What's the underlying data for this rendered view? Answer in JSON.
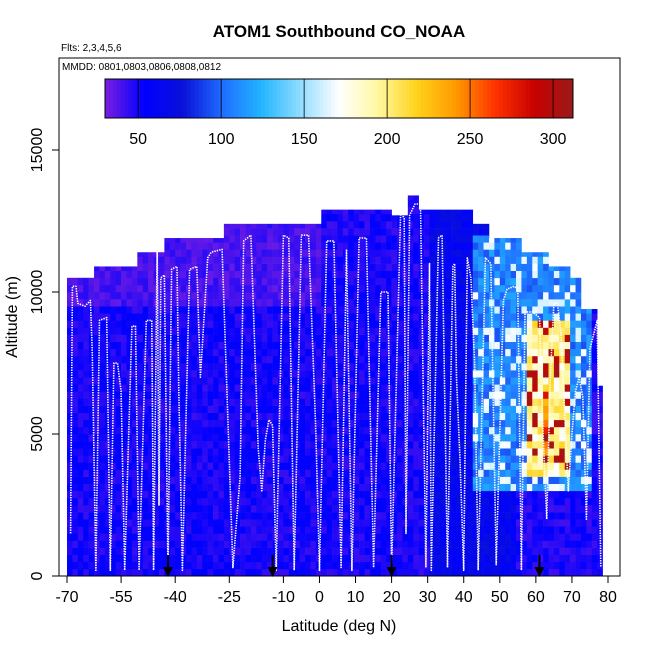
{
  "chart_data": {
    "type": "heatmap",
    "title": "ATOM1 Southbound CO_NOAA",
    "flights_label": "Flts: 2,3,4,5,6",
    "dates_label": "MMDD: 0801,0803,0806,0808,0812",
    "xlabel": "Latitude (deg N)",
    "ylabel": "Altitude (m)",
    "xlim": [
      -70,
      80
    ],
    "ylim": [
      0,
      17500
    ],
    "x_ticks": [
      "-70",
      "-55",
      "-40",
      "-25",
      "-10",
      "0",
      "10",
      "20",
      "30",
      "40",
      "50",
      "60",
      "70",
      "80"
    ],
    "x_tick_values": [
      -70,
      -55,
      -40,
      -25,
      -10,
      0,
      10,
      20,
      30,
      40,
      50,
      60,
      70,
      80
    ],
    "y_ticks": [
      "0",
      "5000",
      "10000",
      "15000"
    ],
    "y_tick_values": [
      0,
      5000,
      10000,
      15000
    ],
    "colorbar": {
      "min": 30,
      "max": 312,
      "ticks": [
        "50",
        "100",
        "150",
        "200",
        "250",
        "300"
      ],
      "tick_values": [
        50,
        100,
        150,
        200,
        250,
        300
      ],
      "colors": [
        "#7b1fe0",
        "#0000ff",
        "#0a10d8",
        "#1f6cff",
        "#22b4ff",
        "#8fdcff",
        "#ffffff",
        "#fff8a0",
        "#ffd21a",
        "#ff9900",
        "#ff3300",
        "#c80000",
        "#9a1a1a"
      ]
    },
    "column_tops": [
      {
        "lat_from": -70,
        "lat_to": -63,
        "top": 10500
      },
      {
        "lat_from": -63,
        "lat_to": -50,
        "top": 10900
      },
      {
        "lat_from": -50,
        "lat_to": -43,
        "top": 11400
      },
      {
        "lat_from": -43,
        "lat_to": -27,
        "top": 11900
      },
      {
        "lat_from": -27,
        "lat_to": 0,
        "top": 12400
      },
      {
        "lat_from": 0,
        "lat_to": 20,
        "top": 12900
      },
      {
        "lat_from": 20,
        "lat_to": 24,
        "top": 12700
      },
      {
        "lat_from": 24,
        "lat_to": 28,
        "top": 13400
      },
      {
        "lat_from": 28,
        "lat_to": 42,
        "top": 12900
      },
      {
        "lat_from": 42,
        "lat_to": 47,
        "top": 12400
      },
      {
        "lat_from": 47,
        "lat_to": 56,
        "top": 11900
      },
      {
        "lat_from": 56,
        "lat_to": 64,
        "top": 11400
      },
      {
        "lat_from": 64,
        "lat_to": 69,
        "top": 10900
      },
      {
        "lat_from": 69,
        "lat_to": 73,
        "top": 10500
      },
      {
        "lat_from": 73,
        "lat_to": 77,
        "top": 9400
      },
      {
        "lat_from": 77,
        "lat_to": 78.5,
        "top": 6700
      }
    ],
    "co_ranges_ppb": [
      {
        "lat_from": -70,
        "lat_to": 30,
        "alt_from": 0,
        "alt_to": 10500,
        "co": 50
      },
      {
        "lat_from": -70,
        "lat_to": 0,
        "alt_from": 9500,
        "alt_to": 12400,
        "co": 40
      },
      {
        "lat_from": 30,
        "lat_to": 55,
        "alt_from": 0,
        "alt_to": 13000,
        "co": 65
      },
      {
        "lat_from": 42,
        "lat_to": 76,
        "alt_from": 3000,
        "alt_to": 12000,
        "co": 110
      },
      {
        "lat_from": 58,
        "lat_to": 70,
        "alt_from": 3500,
        "alt_to": 9000,
        "co": 200
      },
      {
        "lat_from": 62,
        "lat_to": 64,
        "alt_from": 4000,
        "alt_to": 6500,
        "co": 260
      }
    ],
    "flight_track": [
      [
        -69,
        1500
      ],
      [
        -68.5,
        10200
      ],
      [
        -67.5,
        10200
      ],
      [
        -67,
        9600
      ],
      [
        -65,
        9500
      ],
      [
        -63.5,
        9700
      ],
      [
        -63,
        8000
      ],
      [
        -62,
        200
      ],
      [
        -61,
        9000
      ],
      [
        -59,
        9100
      ],
      [
        -58,
        200
      ],
      [
        -57,
        7500
      ],
      [
        -56,
        7500
      ],
      [
        -55,
        6500
      ],
      [
        -54,
        200
      ],
      [
        -52,
        8800
      ],
      [
        -51,
        8800
      ],
      [
        -50,
        200
      ],
      [
        -48,
        9000
      ],
      [
        -46.5,
        9000
      ],
      [
        -46,
        200
      ],
      [
        -45,
        11700
      ],
      [
        -44.5,
        2500
      ],
      [
        -44,
        10500
      ],
      [
        -43,
        10600
      ],
      [
        -42,
        200
      ],
      [
        -41,
        10800
      ],
      [
        -39.5,
        10900
      ],
      [
        -39,
        6500
      ],
      [
        -38,
        200
      ],
      [
        -36,
        10800
      ],
      [
        -34,
        10900
      ],
      [
        -33,
        7000
      ],
      [
        -31,
        11200
      ],
      [
        -30,
        11400
      ],
      [
        -27,
        11500
      ],
      [
        -24,
        300
      ],
      [
        -22,
        3500
      ],
      [
        -21,
        11800
      ],
      [
        -19,
        12000
      ],
      [
        -17,
        4500
      ],
      [
        -16,
        3000
      ],
      [
        -15,
        4800
      ],
      [
        -14,
        5500
      ],
      [
        -13,
        5300
      ],
      [
        -12,
        200
      ],
      [
        -10,
        12000
      ],
      [
        -8.5,
        11900
      ],
      [
        -7,
        200
      ],
      [
        -5,
        12000
      ],
      [
        -3,
        12000
      ],
      [
        -1,
        5000
      ],
      [
        0,
        200
      ],
      [
        2,
        11800
      ],
      [
        4,
        11800
      ],
      [
        6,
        300
      ],
      [
        7.5,
        11500
      ],
      [
        9,
        200
      ],
      [
        11,
        11900
      ],
      [
        13,
        11900
      ],
      [
        15,
        300
      ],
      [
        17,
        10000
      ],
      [
        19,
        10000
      ],
      [
        20,
        200
      ],
      [
        22.5,
        12800
      ],
      [
        23.5,
        12600
      ],
      [
        24,
        1500
      ],
      [
        25,
        12700
      ],
      [
        26.5,
        13100
      ],
      [
        28,
        13100
      ],
      [
        29.5,
        300
      ],
      [
        30.5,
        11000
      ],
      [
        31,
        200
      ],
      [
        33,
        11900
      ],
      [
        34,
        12000
      ],
      [
        35.5,
        300
      ],
      [
        37,
        10900
      ],
      [
        37.5,
        11000
      ],
      [
        38,
        7000
      ],
      [
        39,
        4000
      ],
      [
        40,
        200
      ],
      [
        41,
        11200
      ],
      [
        42,
        10500
      ],
      [
        43,
        7500
      ],
      [
        44,
        200
      ],
      [
        46,
        11200
      ],
      [
        47.5,
        11000
      ],
      [
        49,
        400
      ],
      [
        51,
        9700
      ],
      [
        52,
        10100
      ],
      [
        54,
        10200
      ],
      [
        55,
        10100
      ],
      [
        56,
        200
      ],
      [
        57,
        9300
      ],
      [
        59,
        9300
      ],
      [
        61,
        9100
      ],
      [
        62,
        5000
      ],
      [
        63,
        2000
      ],
      [
        64,
        7000
      ],
      [
        65,
        9600
      ],
      [
        66,
        9600
      ],
      [
        67,
        8500
      ],
      [
        69,
        3000
      ],
      [
        70,
        5000
      ],
      [
        71,
        6500
      ],
      [
        72,
        7000
      ],
      [
        73,
        6300
      ],
      [
        74,
        2000
      ],
      [
        75,
        8000
      ],
      [
        77,
        9000
      ],
      [
        78,
        300
      ]
    ],
    "arrows_lat": [
      -42,
      -13,
      20,
      61
    ]
  }
}
